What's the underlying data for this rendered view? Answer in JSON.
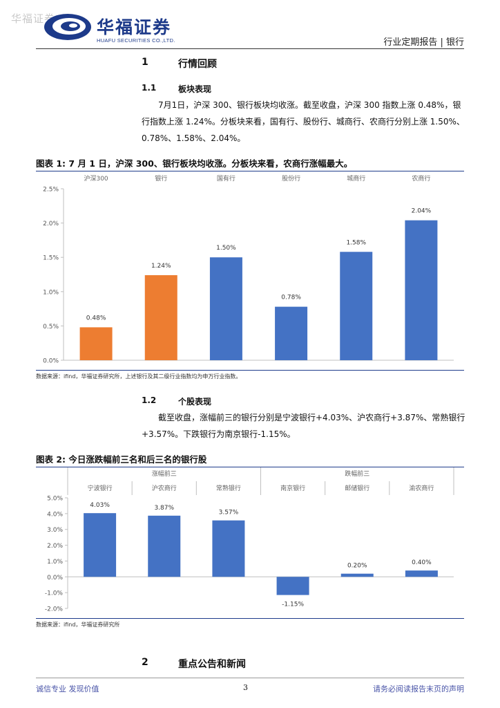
{
  "header": {
    "watermark": "华福证券",
    "logo_cn": "华福证券",
    "logo_en": "HUAFU SECURITIES CO.,LTD.",
    "right": "行业定期报告 | 银行"
  },
  "section1": {
    "num": "1",
    "title": "行情回顾"
  },
  "section11": {
    "num": "1.1",
    "title": "板块表现",
    "para": "7月1日，沪深 300、银行板块均收涨。截至收盘，沪深 300 指数上涨 0.48%，银行指数上涨 1.24%。分板块来看，国有行、股份行、城商行、农商行分别上涨 1.50%、0.78%、1.58%、2.04%。"
  },
  "figure1": {
    "title": "图表 1:  7 月 1 日，沪深 300、银行板块均收涨。分板块来看，农商行涨幅最大。",
    "source": "数据来源：ifind，华福证券研究所，上述银行及其二级行业指数均为申万行业指数。"
  },
  "section12": {
    "num": "1.2",
    "title": "个股表现",
    "para": "截至收盘，涨幅前三的银行分别是宁波银行+4.03%、沪农商行+3.87%、常熟银行+3.57%。下跌银行为南京银行-1.15%。"
  },
  "figure2": {
    "title": "图表 2:  今日涨跌幅前三名和后三名的银行股",
    "source": "数据来源：ifind，华福证券研究所",
    "group_top": "涨幅前三",
    "group_bottom": "跌幅前三"
  },
  "section2": {
    "num": "2",
    "title": "重点公告和新闻"
  },
  "footer": {
    "left": "诚信专业  发现价值",
    "page": "3",
    "right": "请务必阅读报告末页的声明"
  },
  "colors": {
    "orange": "#ED7D31",
    "blue": "#4472C4",
    "brand": "#1d3a8a"
  },
  "chart_data": [
    {
      "type": "bar",
      "categories": [
        "沪深300",
        "银行",
        "国有行",
        "股份行",
        "城商行",
        "农商行"
      ],
      "values": [
        0.48,
        1.24,
        1.5,
        0.78,
        1.58,
        2.04
      ],
      "labels": [
        "0.48%",
        "1.24%",
        "1.50%",
        "0.78%",
        "1.58%",
        "2.04%"
      ],
      "bar_colors": [
        "#ED7D31",
        "#ED7D31",
        "#4472C4",
        "#4472C4",
        "#4472C4",
        "#4472C4"
      ],
      "yticks": [
        "2.5%",
        "2.0%",
        "1.5%",
        "1.0%",
        "0.5%",
        "0.0%"
      ],
      "ylim": [
        0,
        2.5
      ],
      "grid": false
    },
    {
      "type": "bar",
      "categories": [
        "宁波银行",
        "沪农商行",
        "常熟银行",
        "南京银行",
        "邮储银行",
        "渝农商行"
      ],
      "values": [
        4.03,
        3.87,
        3.57,
        -1.15,
        0.2,
        0.4
      ],
      "labels": [
        "4.03%",
        "3.87%",
        "3.57%",
        "-1.15%",
        "0.20%",
        "0.40%"
      ],
      "bar_colors": [
        "#4472C4",
        "#4472C4",
        "#4472C4",
        "#4472C4",
        "#4472C4",
        "#4472C4"
      ],
      "yticks": [
        "5.0%",
        "4.0%",
        "3.0%",
        "2.0%",
        "1.0%",
        "0.0%",
        "-1.0%",
        "-2.0%"
      ],
      "ylim": [
        -2,
        5
      ],
      "grid": false
    }
  ]
}
